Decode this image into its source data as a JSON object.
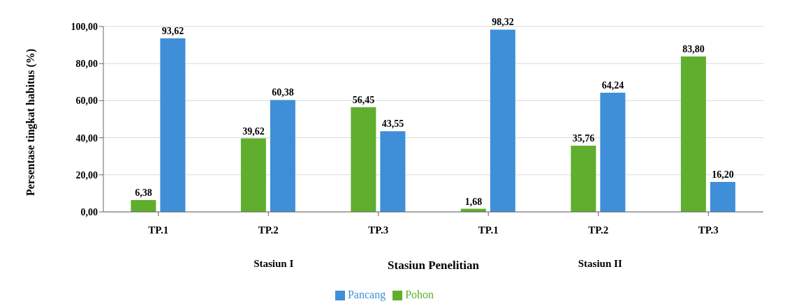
{
  "chart_data": {
    "type": "bar",
    "xlabel": "Stasiun Penelitian",
    "ylabel": "Persentase tingkat habitus (%)",
    "categories": [
      "TP.1",
      "TP.2",
      "TP.3",
      "TP.1",
      "TP.2",
      "TP.3"
    ],
    "series": [
      {
        "name": "Pohon",
        "color": "#5fae2e",
        "values": [
          6.38,
          39.62,
          56.45,
          1.68,
          35.76,
          83.8
        ],
        "value_labels": [
          "6,38",
          "39,62",
          "56,45",
          "1,68",
          "35,76",
          "83,80"
        ]
      },
      {
        "name": "Pancang",
        "color": "#3f8fd8",
        "values": [
          93.62,
          60.38,
          43.55,
          98.32,
          64.24,
          16.2
        ],
        "value_labels": [
          "93,62",
          "60,38",
          "43,55",
          "98,32",
          "64,24",
          "16,20"
        ]
      }
    ],
    "annotations": [
      "Stasiun I",
      "Stasiun II"
    ],
    "ylim": [
      0,
      100
    ],
    "yticks": [
      {
        "value": 0,
        "label": "0,00"
      },
      {
        "value": 20,
        "label": "20,00"
      },
      {
        "value": 40,
        "label": "40,00"
      },
      {
        "value": 60,
        "label": "60,00"
      },
      {
        "value": 80,
        "label": "80,00"
      },
      {
        "value": 100,
        "label": "100,00"
      }
    ],
    "grid": "y",
    "legend": "bottom"
  }
}
